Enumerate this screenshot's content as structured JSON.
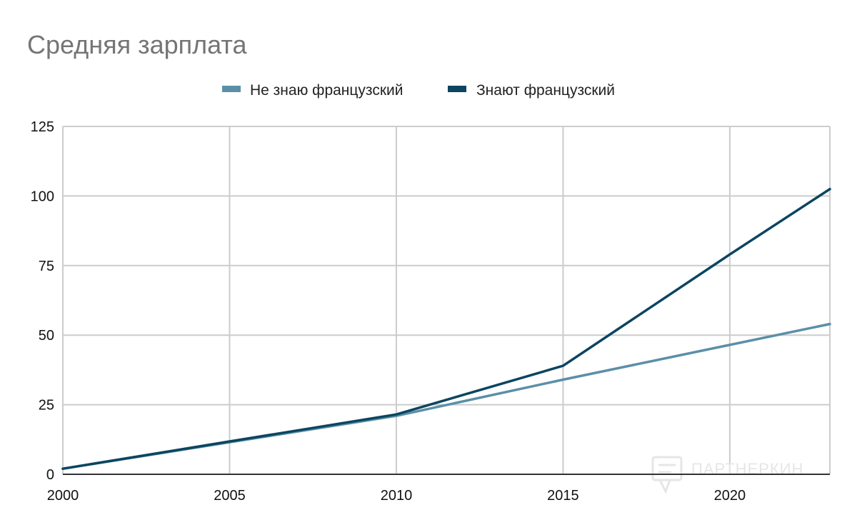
{
  "chart_data": {
    "type": "line",
    "title": "Средняя зарплата",
    "xlabel": "",
    "ylabel": "",
    "xlim": [
      2000,
      2023
    ],
    "ylim": [
      0,
      125
    ],
    "xticks": [
      2000,
      2005,
      2010,
      2015,
      2020
    ],
    "yticks": [
      0,
      25,
      50,
      75,
      100,
      125
    ],
    "grid": true,
    "legend_position": "top",
    "series": [
      {
        "name": "Не знаю французский",
        "color": "#5b8fa8",
        "x": [
          2000,
          2005,
          2010,
          2015,
          2023
        ],
        "y": [
          2,
          11.5,
          21,
          34,
          54
        ]
      },
      {
        "name": "Знают французский",
        "color": "#0b4560",
        "x": [
          2000,
          2005,
          2010,
          2015,
          2020,
          2023
        ],
        "y": [
          2,
          11.8,
          21.5,
          39,
          79,
          102.5
        ]
      }
    ]
  },
  "watermark": {
    "text": "ПАРТНЕРКИН",
    "icon": "chat-bubble-icon"
  }
}
